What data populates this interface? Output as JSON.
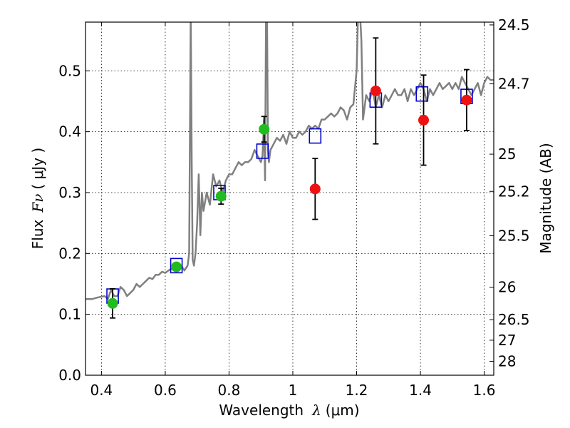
{
  "chart_data": {
    "type": "scatter",
    "title": "",
    "xlabel_text": "Wavelength",
    "xlabel_symbol": "λ",
    "xlabel_unit": "(μm)",
    "ylabel_text": "Flux",
    "ylabel_symbol": "Fν",
    "ylabel_unit": "( μJy )",
    "y2label": "Magnitude (AB)",
    "xlim": [
      0.35,
      1.63
    ],
    "ylim": [
      0.0,
      0.58
    ],
    "grid": true,
    "x_ticks": [
      0.4,
      0.6,
      0.8,
      1.0,
      1.2,
      1.4,
      1.6
    ],
    "x_tick_labels": [
      "0.4",
      "0.6",
      "0.8",
      "1",
      "1.2",
      "1.4",
      "1.6"
    ],
    "y_ticks": [
      0.0,
      0.1,
      0.2,
      0.3,
      0.4,
      0.5
    ],
    "y_tick_labels": [
      "0.0",
      "0.1",
      "0.2",
      "0.3",
      "0.4",
      "0.5"
    ],
    "y2_ticks": [
      {
        "label": "24.5",
        "flux": 0.5754
      },
      {
        "label": "24.7",
        "flux": 0.4786
      },
      {
        "label": "25",
        "flux": 0.3631
      },
      {
        "label": "25.2",
        "flux": 0.302
      },
      {
        "label": "25.5",
        "flux": 0.2291
      },
      {
        "label": "26",
        "flux": 0.1445
      },
      {
        "label": "26.5",
        "flux": 0.0912
      },
      {
        "label": "27",
        "flux": 0.0575
      },
      {
        "label": "28",
        "flux": 0.0229
      }
    ],
    "series": [
      {
        "kind": "line",
        "color": "#808080",
        "x": [
          0.35,
          0.37,
          0.39,
          0.41,
          0.42,
          0.43,
          0.44,
          0.45,
          0.46,
          0.47,
          0.48,
          0.49,
          0.5,
          0.51,
          0.52,
          0.53,
          0.54,
          0.55,
          0.56,
          0.57,
          0.58,
          0.59,
          0.6,
          0.61,
          0.62,
          0.63,
          0.64,
          0.65,
          0.66,
          0.67,
          0.675,
          0.68,
          0.683,
          0.686,
          0.69,
          0.695,
          0.7,
          0.705,
          0.71,
          0.715,
          0.72,
          0.73,
          0.74,
          0.75,
          0.76,
          0.77,
          0.78,
          0.79,
          0.8,
          0.81,
          0.82,
          0.83,
          0.84,
          0.85,
          0.86,
          0.87,
          0.88,
          0.89,
          0.9,
          0.905,
          0.91,
          0.913,
          0.916,
          0.919,
          0.922,
          0.925,
          0.93,
          0.94,
          0.95,
          0.96,
          0.97,
          0.98,
          0.99,
          1.0,
          1.01,
          1.02,
          1.03,
          1.04,
          1.05,
          1.06,
          1.07,
          1.08,
          1.09,
          1.1,
          1.11,
          1.12,
          1.13,
          1.14,
          1.15,
          1.16,
          1.17,
          1.18,
          1.19,
          1.2,
          1.205,
          1.21,
          1.215,
          1.22,
          1.23,
          1.24,
          1.25,
          1.26,
          1.27,
          1.28,
          1.29,
          1.3,
          1.31,
          1.32,
          1.33,
          1.34,
          1.35,
          1.36,
          1.37,
          1.38,
          1.39,
          1.4,
          1.41,
          1.42,
          1.43,
          1.44,
          1.45,
          1.46,
          1.47,
          1.48,
          1.49,
          1.5,
          1.51,
          1.52,
          1.53,
          1.54,
          1.55,
          1.56,
          1.57,
          1.58,
          1.59,
          1.6,
          1.61,
          1.62,
          1.63
        ],
        "y": [
          0.125,
          0.125,
          0.128,
          0.13,
          0.125,
          0.14,
          0.13,
          0.13,
          0.145,
          0.14,
          0.13,
          0.135,
          0.14,
          0.15,
          0.145,
          0.15,
          0.155,
          0.16,
          0.158,
          0.165,
          0.165,
          0.17,
          0.168,
          0.172,
          0.175,
          0.172,
          0.178,
          0.18,
          0.172,
          0.18,
          0.2,
          0.6,
          0.35,
          0.19,
          0.18,
          0.2,
          0.25,
          0.33,
          0.23,
          0.3,
          0.27,
          0.3,
          0.28,
          0.33,
          0.31,
          0.32,
          0.3,
          0.32,
          0.33,
          0.33,
          0.34,
          0.35,
          0.345,
          0.35,
          0.35,
          0.355,
          0.37,
          0.36,
          0.35,
          0.36,
          0.42,
          0.32,
          0.6,
          0.6,
          0.37,
          0.35,
          0.37,
          0.38,
          0.39,
          0.385,
          0.395,
          0.38,
          0.4,
          0.39,
          0.39,
          0.4,
          0.395,
          0.4,
          0.41,
          0.405,
          0.41,
          0.405,
          0.42,
          0.42,
          0.425,
          0.43,
          0.425,
          0.43,
          0.44,
          0.435,
          0.42,
          0.44,
          0.445,
          0.5,
          0.6,
          0.6,
          0.55,
          0.42,
          0.46,
          0.45,
          0.47,
          0.44,
          0.46,
          0.44,
          0.46,
          0.45,
          0.46,
          0.47,
          0.46,
          0.46,
          0.47,
          0.45,
          0.47,
          0.46,
          0.47,
          0.48,
          0.47,
          0.45,
          0.47,
          0.46,
          0.47,
          0.48,
          0.47,
          0.475,
          0.48,
          0.47,
          0.48,
          0.47,
          0.49,
          0.48,
          0.47,
          0.46,
          0.47,
          0.48,
          0.46,
          0.48,
          0.49,
          0.485,
          0.485
        ]
      },
      {
        "kind": "box",
        "color": "#0000cc",
        "x": [
          0.435,
          0.635,
          0.77,
          0.905,
          1.07,
          1.26,
          1.405,
          1.545
        ],
        "y": [
          0.13,
          0.18,
          0.3,
          0.368,
          0.393,
          0.452,
          0.462,
          0.458
        ]
      },
      {
        "kind": "points",
        "color": "#22bb22",
        "x": [
          0.435,
          0.635,
          0.775,
          0.91
        ],
        "y": [
          0.118,
          0.178,
          0.294,
          0.404
        ],
        "yerr": [
          0.024,
          0.0,
          0.013,
          0.021
        ]
      },
      {
        "kind": "points",
        "color": "#ee1111",
        "x": [
          1.07,
          1.26,
          1.41,
          1.545
        ],
        "y": [
          0.306,
          0.467,
          0.419,
          0.452
        ],
        "yerr": [
          0.05,
          0.087,
          0.074,
          0.05
        ]
      }
    ]
  }
}
